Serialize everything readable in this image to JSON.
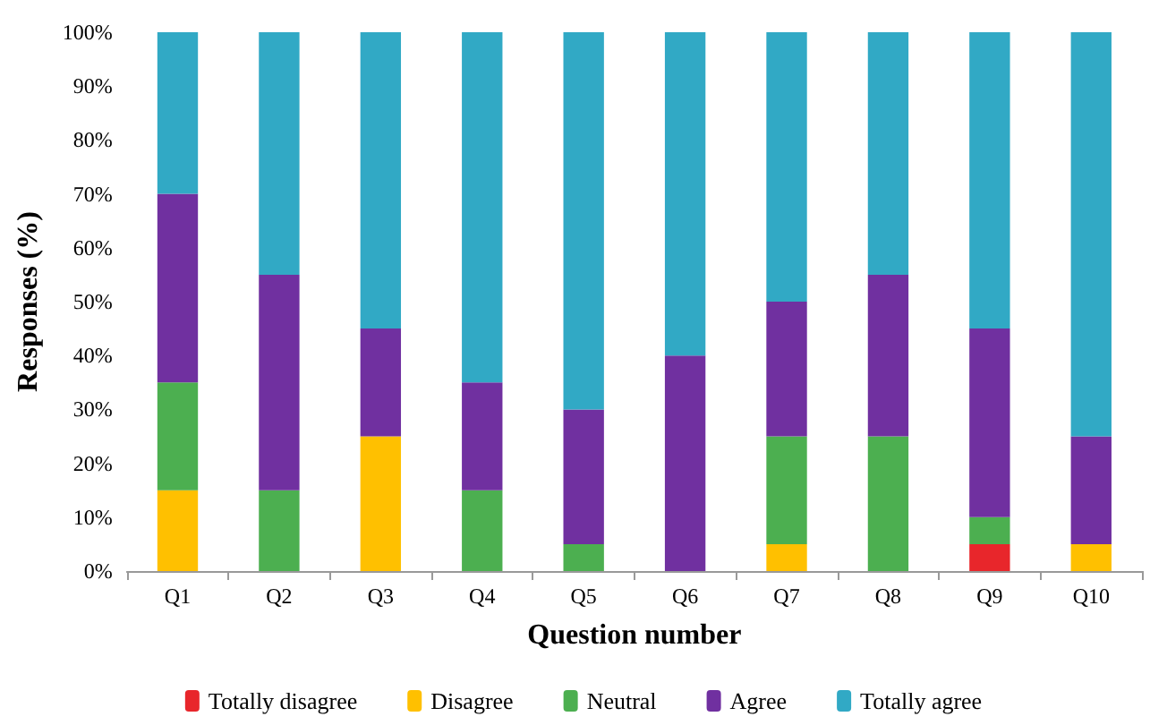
{
  "chart_data": {
    "type": "bar",
    "stacked": true,
    "xlabel": "Question number",
    "ylabel": "Responses (%)",
    "categories": [
      "Q1",
      "Q2",
      "Q3",
      "Q4",
      "Q5",
      "Q6",
      "Q7",
      "Q8",
      "Q9",
      "Q10"
    ],
    "series": [
      {
        "name": "Totally disagree",
        "color": "#e8262b",
        "values": [
          0,
          0,
          0,
          0,
          0,
          0,
          0,
          0,
          5,
          0
        ]
      },
      {
        "name": "Disagree",
        "color": "#ffc000",
        "values": [
          15,
          0,
          25,
          0,
          0,
          0,
          5,
          0,
          0,
          5
        ]
      },
      {
        "name": "Neutral",
        "color": "#4caf50",
        "values": [
          20,
          15,
          0,
          15,
          5,
          0,
          20,
          25,
          5,
          0
        ]
      },
      {
        "name": "Agree",
        "color": "#7030a0",
        "values": [
          35,
          40,
          20,
          20,
          25,
          40,
          25,
          30,
          35,
          20
        ]
      },
      {
        "name": "Totally agree",
        "color": "#31a9c5",
        "values": [
          30,
          45,
          55,
          65,
          70,
          60,
          50,
          45,
          55,
          75
        ]
      }
    ],
    "ylim": [
      0,
      100
    ],
    "yticks": [
      {
        "value": 0,
        "label": "0%"
      },
      {
        "value": 10,
        "label": "10%"
      },
      {
        "value": 20,
        "label": "20%"
      },
      {
        "value": 30,
        "label": "30%"
      },
      {
        "value": 40,
        "label": "40%"
      },
      {
        "value": 50,
        "label": "50%"
      },
      {
        "value": 60,
        "label": "60%"
      },
      {
        "value": 70,
        "label": "70%"
      },
      {
        "value": 80,
        "label": "80%"
      },
      {
        "value": 90,
        "label": "90%"
      },
      {
        "value": 100,
        "label": "100%"
      }
    ],
    "grid": false,
    "legend": "bottom"
  }
}
